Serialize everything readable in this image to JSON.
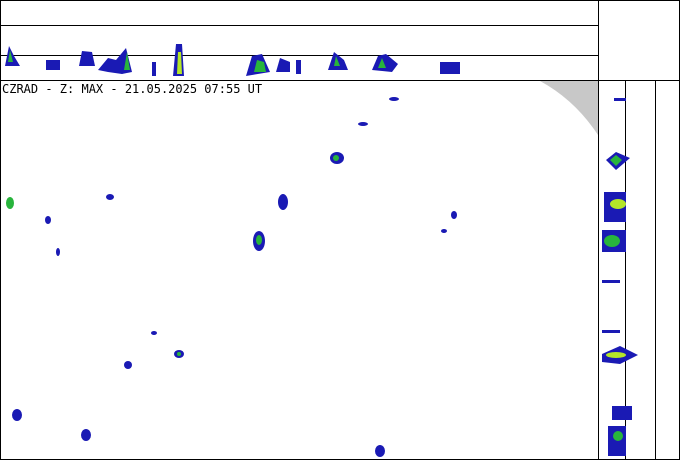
{
  "title": "CZRAD - Z: MAX - 21.05.2025 07:55 UT"
}
